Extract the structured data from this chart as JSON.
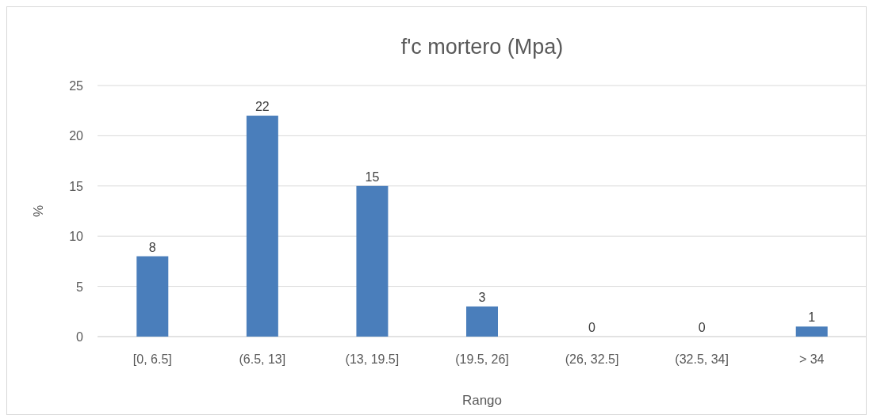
{
  "chart_data": {
    "type": "bar",
    "title": "f'c mortero (Mpa)",
    "xlabel": "Rango",
    "ylabel": "%",
    "categories": [
      "[0, 6.5]",
      "(6.5, 13]",
      "(13, 19.5]",
      "(19.5, 26]",
      "(26, 32.5]",
      "(32.5, 34]",
      "> 34"
    ],
    "values": [
      8,
      22,
      15,
      3,
      0,
      0,
      1
    ],
    "color": "#4a7ebb",
    "ylim": [
      0,
      25
    ],
    "yticks": [
      0,
      5,
      10,
      15,
      20,
      25
    ],
    "grid": "y",
    "data_labels": true
  }
}
